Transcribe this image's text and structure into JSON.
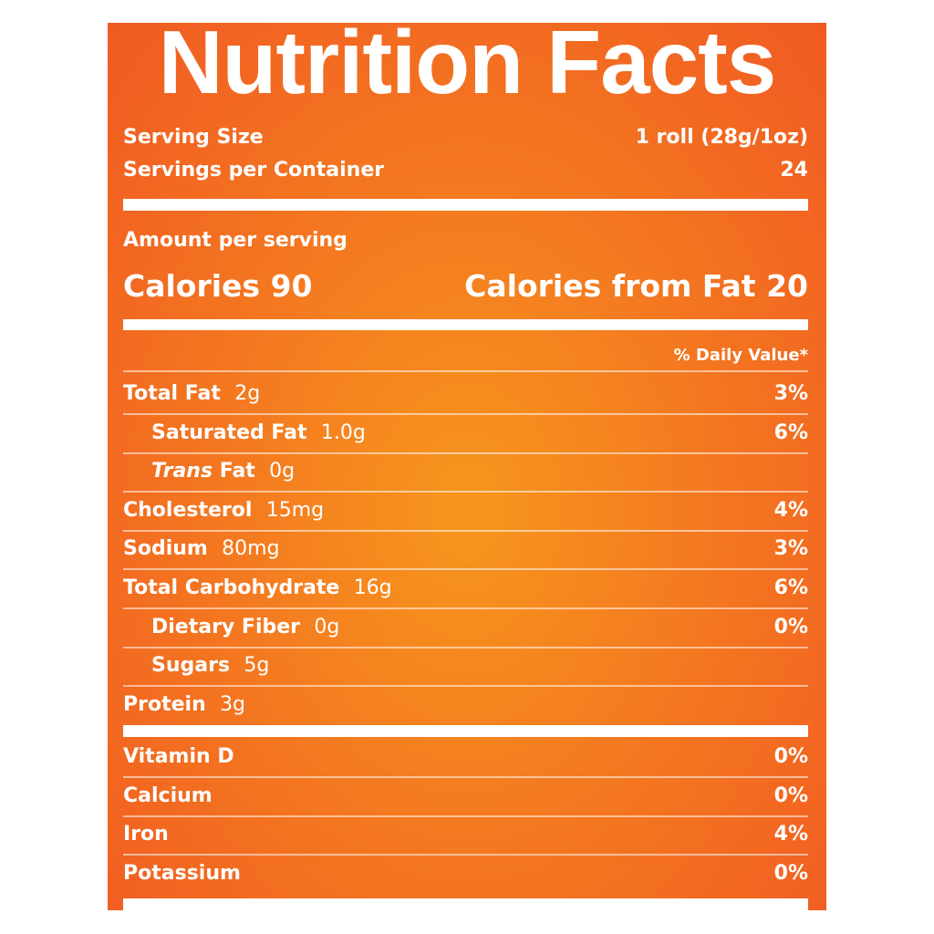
{
  "title": "Nutrition Facts",
  "serving": {
    "label": "Serving Size",
    "value": "1 roll (28g/1oz)"
  },
  "servings": {
    "label": "Servings per Container",
    "value": "24"
  },
  "amount_per_serving": "Amount per serving",
  "calories": {
    "label": "Calories",
    "value": "90"
  },
  "calories_from_fat": {
    "label": "Calories from Fat",
    "value": "20"
  },
  "daily_value_header": "% Daily Value*",
  "nutrients": [
    {
      "name": "Total Fat",
      "amount": "2g",
      "dv": "3%"
    },
    {
      "name": "Saturated Fat",
      "amount": "1.0g",
      "dv": "6%",
      "indent": true
    },
    {
      "name_italic": "Trans",
      "name": "Fat",
      "amount": "0g",
      "indent": true
    },
    {
      "name": "Cholesterol",
      "amount": "15mg",
      "dv": "4%"
    },
    {
      "name": "Sodium",
      "amount": "80mg",
      "dv": "3%"
    },
    {
      "name": "Total Carbohydrate",
      "amount": "16g",
      "dv": "6%"
    },
    {
      "name": "Dietary Fiber",
      "amount": "0g",
      "dv": "0%",
      "indent": true
    },
    {
      "name": "Sugars",
      "amount": "5g",
      "indent": true
    },
    {
      "name": "Protein",
      "amount": "3g"
    }
  ],
  "vitamins": [
    {
      "name": "Vitamin D",
      "dv": "0%"
    },
    {
      "name": "Calcium",
      "dv": "0%"
    },
    {
      "name": "Iron",
      "dv": "4%"
    },
    {
      "name": "Potassium",
      "dv": "0%"
    }
  ]
}
